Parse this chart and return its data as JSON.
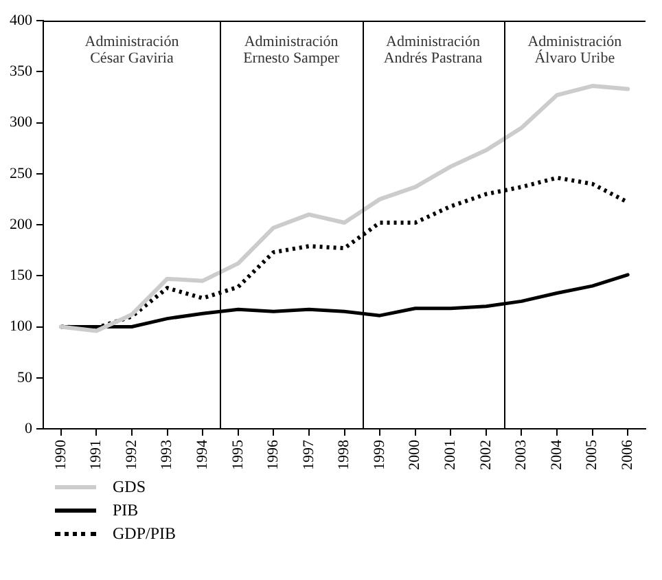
{
  "chart_data": {
    "type": "line",
    "x": [
      1990,
      1991,
      1992,
      1993,
      1994,
      1995,
      1996,
      1997,
      1998,
      1999,
      2000,
      2001,
      2002,
      2003,
      2004,
      2005,
      2006
    ],
    "xlim": [
      1989.5,
      2006.5
    ],
    "xticks": [
      1990,
      1991,
      1992,
      1993,
      1994,
      1995,
      1996,
      1997,
      1998,
      1999,
      2000,
      2001,
      2002,
      2003,
      2004,
      2005,
      2006
    ],
    "ylim": [
      0,
      400
    ],
    "yticks": [
      0,
      50,
      100,
      150,
      200,
      250,
      300,
      350,
      400
    ],
    "series": [
      {
        "name": "GDS",
        "color": "#cccccc",
        "line_style": "solid",
        "values": [
          100,
          96,
          112,
          147,
          145,
          162,
          197,
          210,
          202,
          225,
          237,
          257,
          273,
          295,
          327,
          336,
          333
        ]
      },
      {
        "name": "PIB",
        "color": "#000000",
        "line_style": "solid",
        "values": [
          100,
          100,
          100,
          108,
          113,
          117,
          115,
          117,
          115,
          111,
          118,
          118,
          120,
          125,
          133,
          140,
          151
        ]
      },
      {
        "name": "GDP/PIB",
        "color": "#000000",
        "line_style": "dotted",
        "values": [
          100,
          99,
          110,
          138,
          128,
          139,
          173,
          179,
          177,
          202,
          202,
          218,
          230,
          237,
          246,
          240,
          222
        ]
      }
    ],
    "ref_lines": [
      {
        "axis": "x",
        "value": 1994.5
      },
      {
        "axis": "x",
        "value": 1998.5
      },
      {
        "axis": "x",
        "value": 2002.5
      }
    ],
    "annotations": [
      "Administración\nCésar Gaviria",
      "Administración\nErnesto Samper",
      "Administración\nAndrés Pastrana",
      "Administración\nÁlvaro Uribe"
    ],
    "grid": false,
    "legend": "bottom left",
    "marker": "none"
  }
}
